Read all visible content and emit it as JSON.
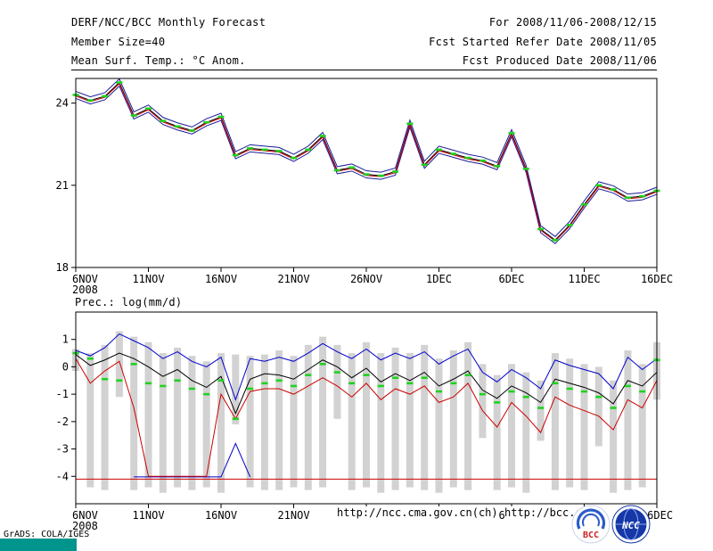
{
  "header": {
    "title": "DERF/NCC/BCC Monthly Forecast",
    "member_size": "Member Size=40",
    "for_period": "For 2008/11/06-2008/12/15",
    "refer_date": "Fcst Started Refer Date 2008/11/05",
    "produced_date": "Fcst Produced Date 2008/11/06"
  },
  "footer": {
    "url_ncc": "http://ncc.cma.gov.cn(ch)",
    "url_bcc": "http://bcc.c",
    "grads_credit": "GrADS: COLA/IGES",
    "bcc_logo_text": "BCC",
    "ncc_logo_text": "NCC"
  },
  "colors": {
    "member_line": "#1a1a99",
    "mean_line": "#000000",
    "control_line": "#cc0000",
    "marker_green": "#1ed31e",
    "bar_gray": "#d2d2d2",
    "teal_strip": "#00958c"
  },
  "chart_data": [
    {
      "type": "line",
      "title": "Mean Surf. Temp.: °C Anom.",
      "ylim": [
        18,
        24.9
      ],
      "yticks": [
        18,
        21,
        24
      ],
      "x_year": "2008",
      "x_tick_positions": [
        0,
        5,
        10,
        15,
        20,
        25,
        30,
        35,
        40
      ],
      "x_tick_labels": [
        "6NOV",
        "11NOV",
        "16NOV",
        "21NOV",
        "26NOV",
        "1DEC",
        "6DEC",
        "11DEC",
        "16DEC"
      ],
      "series": [
        {
          "name": "ensemble-mean",
          "color": "#000000",
          "values": [
            24.3,
            24.1,
            24.25,
            24.75,
            23.55,
            23.8,
            23.35,
            23.15,
            23.0,
            23.3,
            23.5,
            22.1,
            22.35,
            22.3,
            22.25,
            22.0,
            22.3,
            22.8,
            21.55,
            21.65,
            21.4,
            21.35,
            21.5,
            23.25,
            21.75,
            22.3,
            22.15,
            22.0,
            21.9,
            21.7,
            22.9,
            21.6,
            19.4,
            19.0,
            19.55,
            20.3,
            21.0,
            20.85,
            20.55,
            20.6,
            20.8
          ]
        },
        {
          "name": "member-envelope-upper",
          "color": "#1a1a99",
          "offset": 0.13
        },
        {
          "name": "member-envelope-lower",
          "color": "#1a1a99",
          "offset": -0.13
        },
        {
          "name": "control-run",
          "color": "#cc0000",
          "offset": -0.04
        }
      ],
      "markers": {
        "name": "daily-green-marker",
        "color": "#1ed31e"
      }
    },
    {
      "type": "line+bar",
      "title": "Prec.: log(mm/d)",
      "ylim": [
        -5,
        2
      ],
      "yticks": [
        -4,
        -3,
        -2,
        -1,
        0,
        1
      ],
      "x_year": "2008",
      "x_tick_positions": [
        0,
        5,
        10,
        15,
        20,
        25,
        30,
        35,
        40
      ],
      "x_tick_labels": [
        "6NOV",
        "11NOV",
        "16NOV",
        "21NOV",
        "26NOV",
        "1DEC",
        "6DEC",
        "11DEC",
        "16DEC"
      ],
      "bars": {
        "name": "member-spread-bar",
        "color": "#d2d2d2",
        "high": [
          0.65,
          0.5,
          0.8,
          1.3,
          1.1,
          0.9,
          0.5,
          0.7,
          0.4,
          0.2,
          0.5,
          0.45,
          0.4,
          0.45,
          0.6,
          0.4,
          0.8,
          1.1,
          0.8,
          0.5,
          0.9,
          0.5,
          0.7,
          0.5,
          0.8,
          0.3,
          0.6,
          0.9,
          0.1,
          -0.3,
          0.1,
          -0.2,
          -0.5,
          0.5,
          0.3,
          0.1,
          0.0,
          -0.5,
          0.6,
          0.1,
          0.9
        ],
        "low": [
          -0.15,
          -4.4,
          -4.5,
          -1.1,
          -4.5,
          -4.4,
          -4.6,
          -4.4,
          -4.5,
          -4.4,
          -4.6,
          -2.1,
          -4.4,
          -4.5,
          -4.5,
          -4.4,
          -4.5,
          -4.4,
          -1.9,
          -4.5,
          -4.4,
          -4.6,
          -4.5,
          -4.4,
          -4.5,
          -4.6,
          -4.4,
          -4.5,
          -2.6,
          -4.5,
          -4.4,
          -4.6,
          -2.7,
          -4.5,
          -4.4,
          -4.5,
          -2.9,
          -4.6,
          -4.5,
          -4.4,
          -1.2
        ]
      },
      "series": [
        {
          "name": "member-max",
          "color": "#0000cc",
          "values": [
            0.6,
            0.4,
            0.7,
            1.2,
            0.95,
            0.7,
            0.3,
            0.55,
            0.2,
            0.0,
            0.35,
            -1.2,
            0.3,
            0.2,
            0.35,
            0.2,
            0.5,
            0.85,
            0.55,
            0.3,
            0.65,
            0.25,
            0.5,
            0.3,
            0.55,
            0.1,
            0.4,
            0.65,
            -0.2,
            -0.55,
            -0.1,
            -0.4,
            -0.8,
            0.25,
            0.05,
            -0.1,
            -0.25,
            -0.8,
            0.35,
            -0.1,
            0.3
          ]
        },
        {
          "name": "ensemble-mean",
          "color": "#000000",
          "values": [
            0.45,
            0.05,
            0.25,
            0.5,
            0.3,
            0.0,
            -0.35,
            -0.1,
            -0.5,
            -0.75,
            -0.35,
            -1.7,
            -0.45,
            -0.25,
            -0.3,
            -0.45,
            -0.1,
            0.25,
            0.0,
            -0.4,
            -0.05,
            -0.55,
            -0.25,
            -0.5,
            -0.2,
            -0.7,
            -0.45,
            -0.15,
            -0.85,
            -1.15,
            -0.7,
            -0.95,
            -1.3,
            -0.45,
            -0.6,
            -0.75,
            -0.95,
            -1.35,
            -0.5,
            -0.7,
            -0.2
          ]
        },
        {
          "name": "member-min",
          "color": "#cc0000",
          "values": [
            0.3,
            -0.6,
            -0.15,
            0.2,
            -1.5,
            -4.0,
            -4.0,
            -4.0,
            -4.0,
            -4.0,
            -1.0,
            -1.9,
            -0.9,
            -0.8,
            -0.8,
            -1.0,
            -0.7,
            -0.4,
            -0.7,
            -1.1,
            -0.6,
            -1.2,
            -0.8,
            -1.0,
            -0.7,
            -1.3,
            -1.1,
            -0.6,
            -1.6,
            -2.2,
            -1.3,
            -1.8,
            -2.4,
            -1.1,
            -1.4,
            -1.6,
            -1.8,
            -2.3,
            -1.2,
            -1.5,
            -0.5
          ]
        }
      ],
      "markers": {
        "name": "daily-green-marker",
        "color": "#1ed31e",
        "values": [
          0.5,
          0.3,
          -0.45,
          -0.5,
          0.1,
          -0.6,
          -0.7,
          -0.5,
          -0.8,
          -1.0,
          -0.5,
          -1.9,
          -0.8,
          -0.6,
          -0.5,
          -0.7,
          -0.3,
          0.1,
          -0.2,
          -0.6,
          -0.3,
          -0.7,
          -0.4,
          -0.6,
          -0.4,
          -0.9,
          -0.6,
          -0.3,
          -1.0,
          -1.3,
          -0.9,
          -1.1,
          -1.5,
          -0.6,
          -0.8,
          -0.9,
          -1.1,
          -1.5,
          -0.7,
          -0.9,
          0.25
        ]
      },
      "baseline": {
        "value": -4.1,
        "color": "#cc0000"
      },
      "floor_segment": {
        "color": "#0000cc",
        "points": [
          [
            4,
            -4.02
          ],
          [
            10,
            -4.02
          ],
          [
            11,
            -2.8
          ],
          [
            12,
            -4.02
          ]
        ]
      }
    }
  ]
}
